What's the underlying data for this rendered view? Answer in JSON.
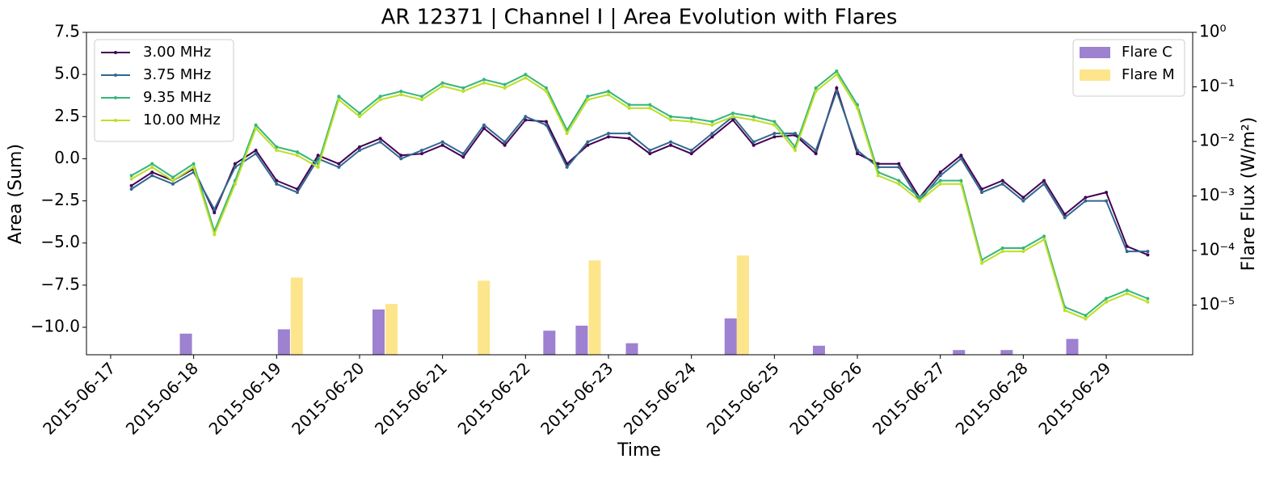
{
  "chart_data": {
    "type": "line",
    "title": "AR 12371 | Channel I | Area Evolution with Flares",
    "x_label": "Time",
    "y_label": "Area (Sum)",
    "y2_label": "Flare Flux (W/m²)",
    "xlim": [
      "2015-06-16T17:00",
      "2015-06-30T01:00"
    ],
    "xticks": [
      "2015-06-17",
      "2015-06-18",
      "2015-06-19",
      "2015-06-20",
      "2015-06-21",
      "2015-06-22",
      "2015-06-23",
      "2015-06-24",
      "2015-06-25",
      "2015-06-26",
      "2015-06-27",
      "2015-06-28",
      "2015-06-29"
    ],
    "ylim": [
      -11.63,
      7.5
    ],
    "yticks": [
      {
        "value": -10,
        "label": "−10.0"
      },
      {
        "value": -7.5,
        "label": "−7.5"
      },
      {
        "value": -5,
        "label": "−5.0"
      },
      {
        "value": -2.5,
        "label": "−2.5"
      },
      {
        "value": 0,
        "label": "0.0"
      },
      2.5,
      {
        "value": 5,
        "label": "5.0"
      },
      7.5
    ],
    "y2_log": true,
    "y2lim": [
      1.23e-06,
      1
    ],
    "y2ticks": [
      {
        "value": 1e-05,
        "label": "10⁻⁵"
      },
      {
        "value": 0.0001,
        "label": "10⁻⁴"
      },
      {
        "value": 0.001,
        "label": "10⁻³"
      },
      {
        "value": 0.01,
        "label": "10⁻²"
      },
      {
        "value": 0.1,
        "label": "10⁻¹"
      },
      {
        "value": 1,
        "label": "10⁰"
      }
    ],
    "legend_loc": "upper left",
    "legend2_loc": "upper right",
    "x": [
      "2015-06-17T06:00",
      "2015-06-17T12:00",
      "2015-06-17T18:00",
      "2015-06-18T00:00",
      "2015-06-18T06:00",
      "2015-06-18T12:00",
      "2015-06-18T18:00",
      "2015-06-19T00:00",
      "2015-06-19T06:00",
      "2015-06-19T12:00",
      "2015-06-19T18:00",
      "2015-06-20T00:00",
      "2015-06-20T06:00",
      "2015-06-20T12:00",
      "2015-06-20T18:00",
      "2015-06-21T00:00",
      "2015-06-21T06:00",
      "2015-06-21T12:00",
      "2015-06-21T18:00",
      "2015-06-22T00:00",
      "2015-06-22T06:00",
      "2015-06-22T12:00",
      "2015-06-22T18:00",
      "2015-06-23T00:00",
      "2015-06-23T06:00",
      "2015-06-23T12:00",
      "2015-06-23T18:00",
      "2015-06-24T00:00",
      "2015-06-24T06:00",
      "2015-06-24T12:00",
      "2015-06-24T18:00",
      "2015-06-25T00:00",
      "2015-06-25T06:00",
      "2015-06-25T12:00",
      "2015-06-25T18:00",
      "2015-06-26T00:00",
      "2015-06-26T06:00",
      "2015-06-26T12:00",
      "2015-06-26T18:00",
      "2015-06-27T00:00",
      "2015-06-27T06:00",
      "2015-06-27T12:00",
      "2015-06-27T18:00",
      "2015-06-28T00:00",
      "2015-06-28T06:00",
      "2015-06-28T12:00",
      "2015-06-28T18:00",
      "2015-06-29T00:00",
      "2015-06-29T06:00",
      "2015-06-29T12:00"
    ],
    "series": [
      {
        "name": "3.00 MHz",
        "type": "line",
        "color": "#440154",
        "values": [
          -1.6,
          -0.8,
          -1.3,
          -0.6,
          -3.2,
          -0.3,
          0.5,
          -1.3,
          -1.8,
          0.2,
          -0.3,
          0.7,
          1.2,
          0.2,
          0.3,
          0.8,
          0.1,
          1.8,
          0.8,
          2.3,
          2.2,
          -0.3,
          0.8,
          1.3,
          1.2,
          0.3,
          0.8,
          0.3,
          1.3,
          2.3,
          0.8,
          1.3,
          1.4,
          0.3,
          4.2,
          0.3,
          -0.3,
          -0.3,
          -2.3,
          -0.8,
          0.2,
          -1.8,
          -1.3,
          -2.3,
          -1.3,
          -3.3,
          -2.3,
          -2.0,
          -5.2,
          -5.7
        ]
      },
      {
        "name": "3.75 MHz",
        "type": "line",
        "color": "#31688e",
        "values": [
          -1.8,
          -1.0,
          -1.5,
          -0.8,
          -3.0,
          -0.5,
          0.3,
          -1.5,
          -2.0,
          0.0,
          -0.5,
          0.5,
          1.0,
          0.0,
          0.5,
          1.0,
          0.3,
          2.0,
          1.0,
          2.5,
          2.0,
          -0.5,
          1.0,
          1.5,
          1.5,
          0.5,
          1.0,
          0.5,
          1.5,
          2.5,
          1.0,
          1.5,
          1.5,
          0.5,
          4.0,
          0.5,
          -0.5,
          -0.5,
          -2.5,
          -1.0,
          0.0,
          -2.0,
          -1.5,
          -2.5,
          -1.5,
          -3.5,
          -2.5,
          -2.5,
          -5.5,
          -5.5
        ]
      },
      {
        "name": "9.35 MHz",
        "type": "line",
        "color": "#35b779",
        "values": [
          -1.0,
          -0.3,
          -1.1,
          -0.3,
          -4.3,
          -1.3,
          2.0,
          0.7,
          0.4,
          -0.3,
          3.7,
          2.7,
          3.7,
          4.0,
          3.7,
          4.5,
          4.2,
          4.7,
          4.4,
          5.0,
          4.2,
          1.7,
          3.7,
          4.0,
          3.2,
          3.2,
          2.5,
          2.4,
          2.2,
          2.7,
          2.5,
          2.2,
          0.7,
          4.2,
          5.2,
          3.2,
          -0.8,
          -1.3,
          -2.3,
          -1.3,
          -1.3,
          -6.0,
          -5.3,
          -5.3,
          -4.6,
          -8.8,
          -9.3,
          -8.3,
          -7.8,
          -8.3
        ]
      },
      {
        "name": "10.00 MHz",
        "type": "line",
        "color": "#bddf26",
        "values": [
          -1.2,
          -0.5,
          -1.3,
          -0.5,
          -4.5,
          -1.5,
          1.8,
          0.5,
          0.2,
          -0.5,
          3.5,
          2.5,
          3.5,
          3.8,
          3.5,
          4.3,
          4.0,
          4.5,
          4.2,
          4.8,
          4.0,
          1.5,
          3.5,
          3.8,
          3.0,
          3.0,
          2.3,
          2.2,
          2.0,
          2.5,
          2.3,
          2.0,
          0.5,
          4.0,
          5.0,
          3.0,
          -1.0,
          -1.5,
          -2.5,
          -1.5,
          -1.5,
          -6.2,
          -5.5,
          -5.5,
          -4.8,
          -9.0,
          -9.5,
          -8.5,
          -8.0,
          -8.5
        ]
      },
      {
        "name": "Flare C",
        "type": "bar",
        "axis": "y2",
        "color": "#9e81d0",
        "x": [
          "2015-06-17T21:46",
          "2015-06-19T02:07",
          "2015-06-20T05:30",
          "2015-06-22T06:54",
          "2015-06-22T16:16",
          "2015-06-23T06:47",
          "2015-06-24T11:21",
          "2015-06-25T12:53",
          "2015-06-27T05:23",
          "2015-06-27T19:12",
          "2015-06-28T14:10"
        ],
        "values": [
          3e-06,
          3.6e-06,
          8.3e-06,
          3.4e-06,
          4.2e-06,
          2e-06,
          5.7e-06,
          1.8e-06,
          1.5e-06,
          1.5e-06,
          2.4e-06
        ]
      },
      {
        "name": "Flare M",
        "type": "bar",
        "axis": "y2",
        "color": "#fde58c",
        "x": [
          "2015-06-19T05:51",
          "2015-06-20T09:15",
          "2015-06-21T11:57",
          "2015-06-22T20:01",
          "2015-06-24T14:53"
        ],
        "values": [
          3.2e-05,
          1.05e-05,
          2.8e-05,
          6.6e-05,
          8.1e-05
        ]
      }
    ]
  }
}
